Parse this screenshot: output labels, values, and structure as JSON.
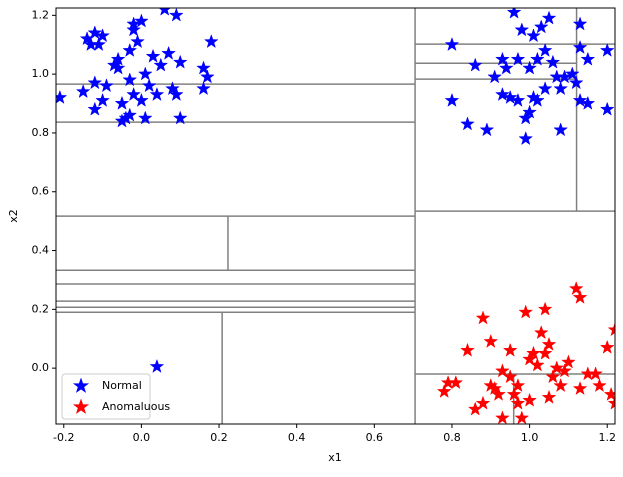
{
  "chart_data": {
    "type": "scatter",
    "x_label": "x1",
    "y_label": "x2",
    "xlim": [
      -0.22,
      1.22
    ],
    "ylim": [
      -0.19,
      1.225
    ],
    "xticks": [
      -0.2,
      {
        "value": 0,
        "label": "0.0"
      },
      0.2,
      0.4,
      0.6,
      0.8,
      {
        "value": 1,
        "label": "1.0"
      },
      1.2
    ],
    "yticks": [
      {
        "value": 0,
        "label": "0.0"
      },
      0.2,
      0.4,
      0.6,
      0.8,
      {
        "value": 1,
        "label": "1.0"
      },
      1.2
    ],
    "legend": "lower left",
    "line_color": "#808080",
    "partition_lines": [
      {
        "x": [
          0.705,
          0.705
        ],
        "y": [
          -0.19,
          1.225
        ]
      },
      {
        "x": [
          -0.22,
          0.705
        ],
        "y": [
          0.966,
          0.966
        ]
      },
      {
        "x": [
          -0.22,
          0.705
        ],
        "y": [
          0.837,
          0.837
        ]
      },
      {
        "x": [
          -0.22,
          0.705
        ],
        "y": [
          0.517,
          0.517
        ]
      },
      {
        "x": [
          0.223,
          0.223
        ],
        "y": [
          0.333,
          0.517
        ]
      },
      {
        "x": [
          -0.22,
          0.705
        ],
        "y": [
          0.333,
          0.333
        ]
      },
      {
        "x": [
          -0.22,
          0.705
        ],
        "y": [
          0.286,
          0.286
        ]
      },
      {
        "x": [
          -0.22,
          0.705
        ],
        "y": [
          0.228,
          0.228
        ]
      },
      {
        "x": [
          -0.22,
          0.705
        ],
        "y": [
          0.207,
          0.207
        ]
      },
      {
        "x": [
          -0.22,
          0.705
        ],
        "y": [
          0.19,
          0.19
        ]
      },
      {
        "x": [
          0.208,
          0.208
        ],
        "y": [
          -0.19,
          0.19
        ]
      },
      {
        "x": [
          0.705,
          1.22
        ],
        "y": [
          0.534,
          0.534
        ]
      },
      {
        "x": [
          1.121,
          1.121
        ],
        "y": [
          0.534,
          1.225
        ]
      },
      {
        "x": [
          0.705,
          1.22
        ],
        "y": [
          1.102,
          1.102
        ]
      },
      {
        "x": [
          0.705,
          1.121
        ],
        "y": [
          1.037,
          1.037
        ]
      },
      {
        "x": [
          0.705,
          1.121
        ],
        "y": [
          0.983,
          0.983
        ]
      },
      {
        "x": [
          0.705,
          1.22
        ],
        "y": [
          -0.02,
          -0.02
        ]
      },
      {
        "x": [
          0.959,
          0.959
        ],
        "y": [
          -0.19,
          -0.02
        ]
      }
    ],
    "series": [
      {
        "name": "Normal",
        "color": "#0000ff",
        "x": [
          -0.21,
          -0.15,
          -0.14,
          -0.13,
          -0.12,
          -0.12,
          -0.12,
          -0.11,
          -0.1,
          -0.1,
          -0.09,
          -0.07,
          -0.06,
          -0.06,
          -0.05,
          -0.05,
          -0.04,
          -0.03,
          -0.03,
          -0.03,
          -0.02,
          -0.02,
          -0.02,
          -0.01,
          0.0,
          0.0,
          0.01,
          0.01,
          0.02,
          0.03,
          0.04,
          0.05,
          0.06,
          0.07,
          0.08,
          0.09,
          0.09,
          0.1,
          0.1,
          0.16,
          0.16,
          0.17,
          0.18,
          0.04,
          0.8,
          0.8,
          0.84,
          0.86,
          0.89,
          0.91,
          0.93,
          0.93,
          0.94,
          0.95,
          0.96,
          0.97,
          0.97,
          0.98,
          0.99,
          0.99,
          1.0,
          1.0,
          1.01,
          1.01,
          1.02,
          1.02,
          1.03,
          1.04,
          1.04,
          1.05,
          1.06,
          1.07,
          1.08,
          1.08,
          1.09,
          1.11,
          1.12,
          1.13,
          1.13,
          1.13,
          1.15,
          1.15,
          1.2,
          1.2
        ],
        "y": [
          0.92,
          0.94,
          1.12,
          1.1,
          1.14,
          0.97,
          0.88,
          1.1,
          0.91,
          1.13,
          0.96,
          1.03,
          1.05,
          1.02,
          0.9,
          0.84,
          0.85,
          1.08,
          0.98,
          0.86,
          0.93,
          1.15,
          1.17,
          1.11,
          1.18,
          0.91,
          0.85,
          1.0,
          0.96,
          1.06,
          0.93,
          1.03,
          1.22,
          1.07,
          0.95,
          1.2,
          0.93,
          1.04,
          0.85,
          1.02,
          0.95,
          0.99,
          1.11,
          0.005,
          1.1,
          0.91,
          0.83,
          1.03,
          0.81,
          0.99,
          1.05,
          0.93,
          1.02,
          0.92,
          1.21,
          1.05,
          0.91,
          1.15,
          0.85,
          0.78,
          0.87,
          1.02,
          1.13,
          0.92,
          1.05,
          0.91,
          1.16,
          1.08,
          0.95,
          1.19,
          1.04,
          0.99,
          0.81,
          0.95,
          0.99,
          1.0,
          0.97,
          1.17,
          0.91,
          1.09,
          1.05,
          0.9,
          1.08,
          0.88
        ]
      },
      {
        "name": "Anomaluous",
        "color": "#ff0000",
        "x": [
          0.78,
          0.79,
          0.81,
          0.84,
          0.86,
          0.88,
          0.88,
          0.9,
          0.9,
          0.91,
          0.92,
          0.93,
          0.93,
          0.95,
          0.95,
          0.96,
          0.97,
          0.97,
          0.98,
          0.99,
          1.0,
          1.0,
          1.01,
          1.02,
          1.03,
          1.04,
          1.04,
          1.05,
          1.05,
          1.06,
          1.07,
          1.08,
          1.09,
          1.1,
          1.12,
          1.13,
          1.13,
          1.15,
          1.17,
          1.18,
          1.2,
          1.21,
          1.22,
          1.22
        ],
        "y": [
          -0.08,
          -0.05,
          -0.05,
          0.06,
          -0.14,
          0.17,
          -0.12,
          0.09,
          -0.06,
          -0.07,
          -0.09,
          -0.01,
          -0.17,
          0.06,
          -0.03,
          -0.09,
          -0.06,
          -0.12,
          -0.17,
          0.19,
          0.03,
          -0.11,
          0.05,
          0.01,
          0.12,
          0.2,
          0.05,
          0.08,
          -0.1,
          -0.03,
          0.0,
          -0.06,
          -0.01,
          0.02,
          0.27,
          0.24,
          -0.07,
          -0.02,
          -0.02,
          -0.06,
          0.07,
          -0.09,
          0.13,
          -0.12
        ]
      }
    ]
  }
}
